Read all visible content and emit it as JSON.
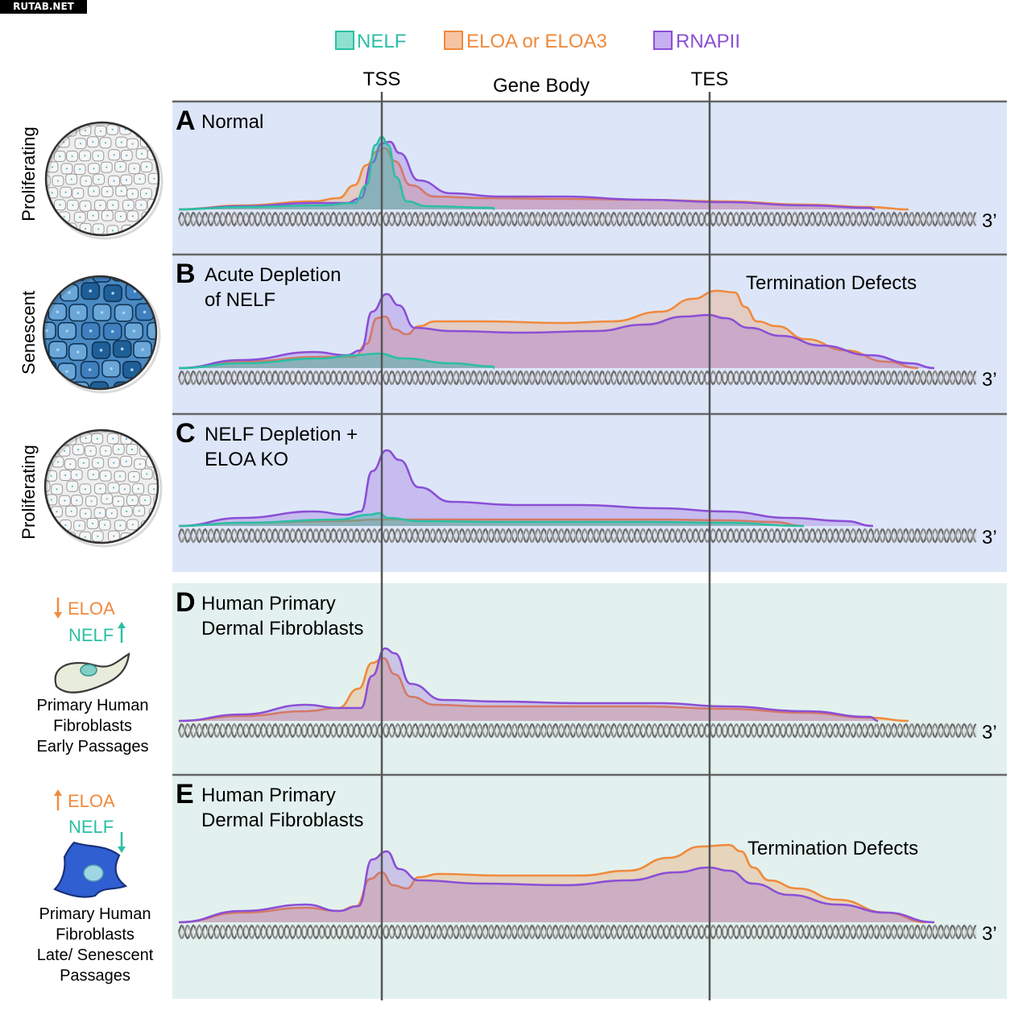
{
  "watermark": "RUTAB.NET",
  "legend": {
    "nelf": "NELF",
    "eloa": "ELOA or ELOA3",
    "rnapii": "RNAPII"
  },
  "axis": {
    "tss": "TSS",
    "gene_body": "Gene Body",
    "tes": "TES",
    "three_prime": "3’"
  },
  "colors": {
    "nelf": "#2bbfa4",
    "eloa": "#f08a3c",
    "rnapii": "#8b4fd6",
    "panel_blue": "#dde6f8",
    "panel_green": "#e2f1ee",
    "axis_line": "#555555"
  },
  "panels": [
    {
      "letter": "A",
      "title_lines": [
        "Normal"
      ],
      "note": "",
      "side_label": "Proliferating",
      "cell": "proliferating"
    },
    {
      "letter": "B",
      "title_lines": [
        "Acute Depletion",
        "of NELF"
      ],
      "note": "Termination Defects",
      "side_label": "Senescent",
      "cell": "senescent"
    },
    {
      "letter": "C",
      "title_lines": [
        "NELF Depletion +",
        "ELOA KO"
      ],
      "note": "",
      "side_label": "Proliferating",
      "cell": "proliferating"
    },
    {
      "letter": "D",
      "title_lines": [
        "Human Primary",
        "Dermal Fibroblasts"
      ],
      "note": "",
      "side": {
        "eloa": "ELOA",
        "nelf": "NELF",
        "eloa_dir": "down",
        "nelf_dir": "up",
        "caption": [
          "Primary Human",
          "Fibroblasts",
          "Early Passages"
        ]
      }
    },
    {
      "letter": "E",
      "title_lines": [
        "Human Primary",
        "Dermal Fibroblasts"
      ],
      "note": "Termination Defects",
      "side": {
        "eloa": "ELOA",
        "nelf": "NELF",
        "eloa_dir": "up",
        "nelf_dir": "down",
        "caption": [
          "Primary Human",
          "Fibroblasts",
          "Late/ Senescent",
          "Passages"
        ]
      }
    }
  ]
}
